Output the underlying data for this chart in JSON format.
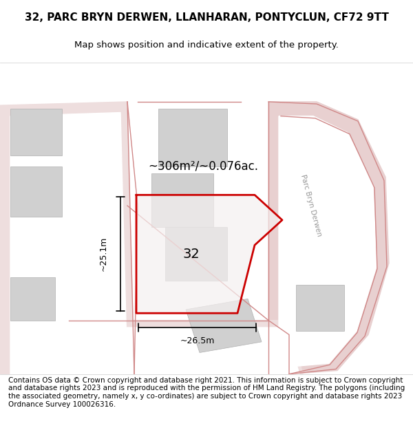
{
  "title": "32, PARC BRYN DERWEN, LLANHARAN, PONTYCLUN, CF72 9TT",
  "subtitle": "Map shows position and indicative extent of the property.",
  "footer": "Contains OS data © Crown copyright and database right 2021. This information is subject to Crown copyright and database rights 2023 and is reproduced with the permission of HM Land Registry. The polygons (including the associated geometry, namely x, y co-ordinates) are subject to Crown copyright and database rights 2023 Ordnance Survey 100026316.",
  "area_label": "~306m²/~0.076ac.",
  "plot_number": "32",
  "dim_h": "~25.1m",
  "dim_w": "~26.5m",
  "road_label": "Parc Bryn Derwen",
  "bg_color": "#f5f0f0",
  "map_bg": "#ffffff",
  "plot_fill": "#f0f0f0",
  "plot_edge": "#cc0000",
  "road_color": "#e8d8d8",
  "building_color": "#d8d8d8",
  "road_label_color": "#aaaaaa",
  "title_fontsize": 11,
  "subtitle_fontsize": 9.5,
  "footer_fontsize": 7.5
}
